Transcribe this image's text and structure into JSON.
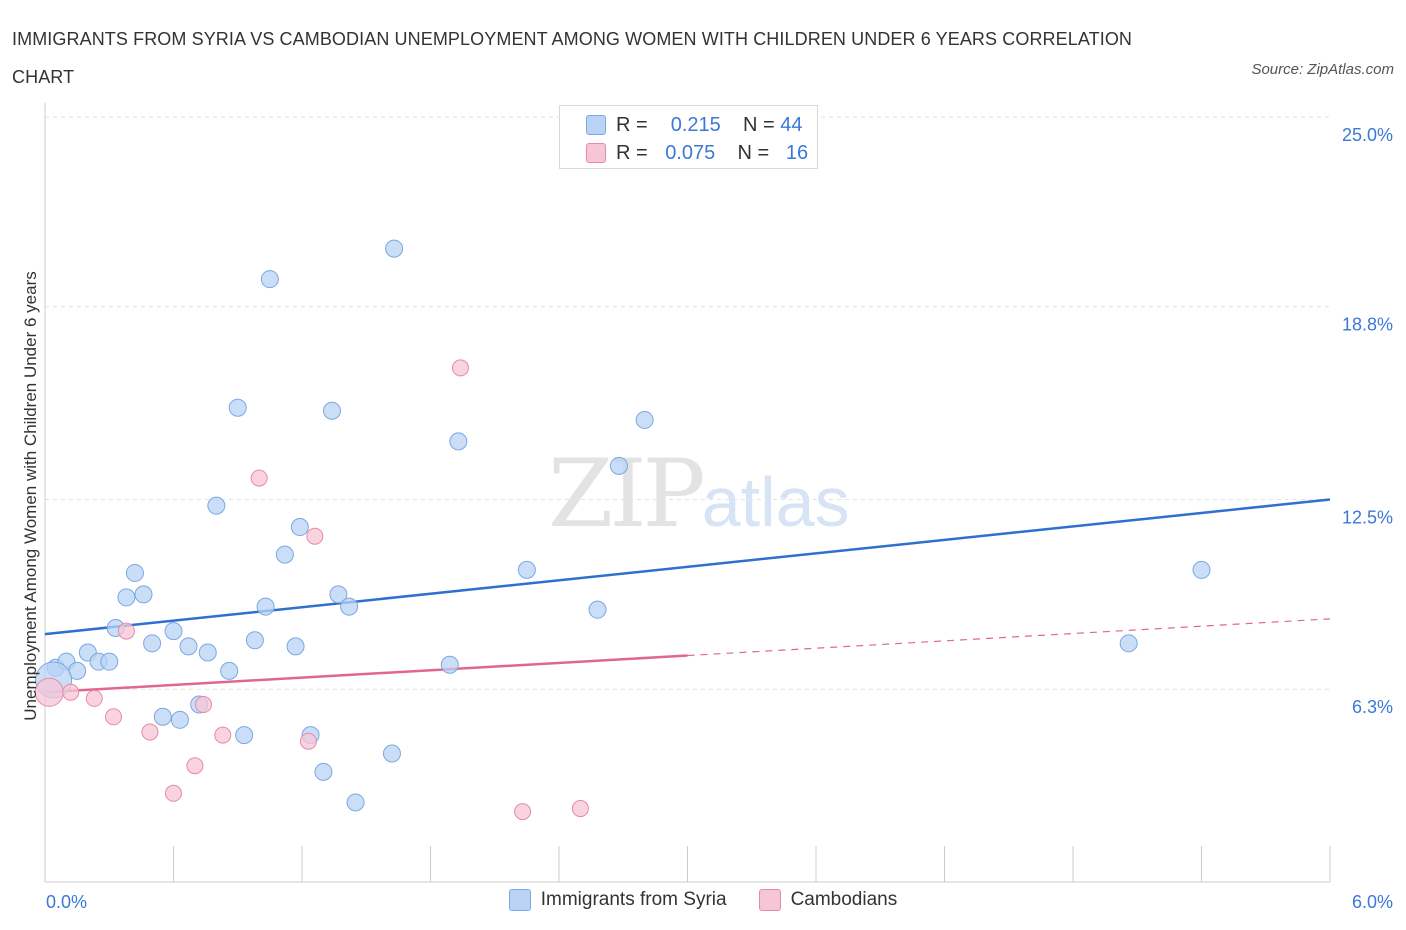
{
  "title": "IMMIGRANTS FROM SYRIA VS CAMBODIAN UNEMPLOYMENT AMONG WOMEN WITH CHILDREN UNDER 6 YEARS CORRELATION CHART",
  "source": "Source: ZipAtlas.com",
  "watermark": {
    "zip": "ZIP",
    "atlas": "atlas"
  },
  "legend": {
    "rows": [
      {
        "r_label": "R =",
        "r_value": "0.215",
        "n_label": "N =",
        "n_value": "44"
      },
      {
        "r_label": "R =",
        "r_value": "0.075",
        "n_label": "N =",
        "n_value": "16"
      }
    ]
  },
  "bottom_legend": [
    "Immigrants from Syria",
    "Cambodians"
  ],
  "colors": {
    "syria_fill": "#b8d3f4",
    "syria_stroke": "#7aa8e0",
    "syria_line": "#2f6fd1",
    "cambodia_fill": "#f7c6d6",
    "cambodia_stroke": "#e68aa9",
    "cambodia_line": "#e0678e",
    "tick_text": "#3b78d8",
    "grid": "#e2e2e2"
  },
  "chart_data": {
    "type": "scatter",
    "title": "IMMIGRANTS FROM SYRIA VS CAMBODIAN UNEMPLOYMENT AMONG WOMEN WITH CHILDREN UNDER 6 YEARS CORRELATION CHART",
    "xlabel": "",
    "ylabel": "Unemployment Among Women with Children Under 6 years",
    "xlim": [
      0,
      6
    ],
    "ylim": [
      0,
      25
    ],
    "x_tick_labels": [
      "0.0%",
      "6.0%"
    ],
    "y_ticks": [
      6.3,
      12.5,
      18.8,
      25.0
    ],
    "y_tick_labels": [
      "6.3%",
      "12.5%",
      "18.8%",
      "25.0%"
    ],
    "grid": true,
    "legend_position": "top-center",
    "series": [
      {
        "name": "Immigrants from Syria",
        "points": [
          [
            0.05,
            7.0
          ],
          [
            0.1,
            7.2
          ],
          [
            0.15,
            6.9
          ],
          [
            0.2,
            7.5
          ],
          [
            0.25,
            7.2
          ],
          [
            0.3,
            7.2
          ],
          [
            0.33,
            8.3
          ],
          [
            0.38,
            9.3
          ],
          [
            0.42,
            10.1
          ],
          [
            0.46,
            9.4
          ],
          [
            0.5,
            7.8
          ],
          [
            0.55,
            5.4
          ],
          [
            0.6,
            8.2
          ],
          [
            0.63,
            5.3
          ],
          [
            0.67,
            7.7
          ],
          [
            0.72,
            5.8
          ],
          [
            0.76,
            7.5
          ],
          [
            0.8,
            12.3
          ],
          [
            0.86,
            6.9
          ],
          [
            0.9,
            15.5
          ],
          [
            0.93,
            4.8
          ],
          [
            0.98,
            7.9
          ],
          [
            1.03,
            9.0
          ],
          [
            1.05,
            19.7
          ],
          [
            1.12,
            10.7
          ],
          [
            1.17,
            7.7
          ],
          [
            1.19,
            11.6
          ],
          [
            1.24,
            4.8
          ],
          [
            1.3,
            3.6
          ],
          [
            1.34,
            15.4
          ],
          [
            1.37,
            9.4
          ],
          [
            1.42,
            9.0
          ],
          [
            1.45,
            2.6
          ],
          [
            1.62,
            4.2
          ],
          [
            1.63,
            20.7
          ],
          [
            1.89,
            7.1
          ],
          [
            1.93,
            14.4
          ],
          [
            2.25,
            10.2
          ],
          [
            2.58,
            8.9
          ],
          [
            2.68,
            13.6
          ],
          [
            2.8,
            15.1
          ],
          [
            5.06,
            7.8
          ],
          [
            5.4,
            10.2
          ],
          [
            0.04,
            6.6
          ]
        ],
        "trend": {
          "x": [
            0,
            6
          ],
          "y": [
            8.1,
            12.5
          ]
        }
      },
      {
        "name": "Cambodians",
        "points": [
          [
            0.02,
            6.2
          ],
          [
            0.12,
            6.2
          ],
          [
            0.23,
            6.0
          ],
          [
            0.32,
            5.4
          ],
          [
            0.38,
            8.2
          ],
          [
            0.49,
            4.9
          ],
          [
            0.6,
            2.9
          ],
          [
            0.7,
            3.8
          ],
          [
            0.74,
            5.8
          ],
          [
            0.83,
            4.8
          ],
          [
            1.0,
            13.2
          ],
          [
            1.23,
            4.6
          ],
          [
            1.26,
            11.3
          ],
          [
            1.94,
            16.8
          ],
          [
            2.23,
            2.3
          ],
          [
            2.5,
            2.4
          ]
        ],
        "trend": {
          "x": [
            0,
            3
          ],
          "y": [
            6.2,
            7.4
          ]
        },
        "trend_dashed": {
          "x": [
            3,
            6
          ],
          "y": [
            7.4,
            8.6
          ]
        }
      }
    ]
  }
}
